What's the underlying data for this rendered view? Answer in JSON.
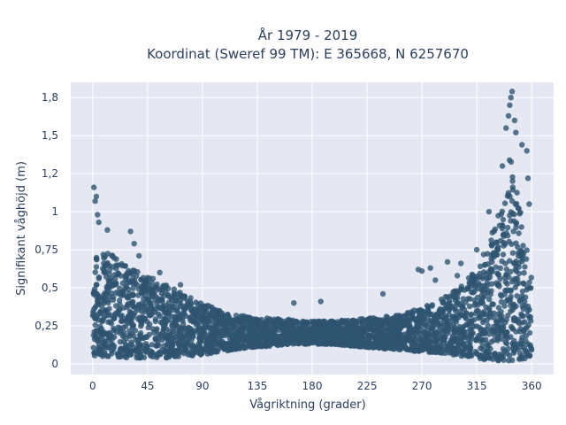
{
  "chart_data": {
    "type": "scatter",
    "title_line1": "År 1979 - 2019",
    "title_line2": "Koordinat (Sweref 99 TM): E 365668, N 6257670",
    "xlabel": "Vågriktning (grader)",
    "ylabel": "Signifikant våghöjd (m)",
    "xlim": [
      -18,
      378
    ],
    "ylim": [
      -0.07,
      1.85
    ],
    "x_ticks": [
      0,
      45,
      90,
      135,
      180,
      225,
      270,
      315,
      360
    ],
    "x_tick_labels": [
      "0",
      "45",
      "90",
      "135",
      "180",
      "225",
      "270",
      "315",
      "360"
    ],
    "y_ticks": [
      0,
      0.25,
      0.5,
      0.75,
      1,
      1.25,
      1.5,
      1.75
    ],
    "y_tick_labels": [
      "0",
      "0,25",
      "0,5",
      "0,75",
      "1",
      "1,2",
      "1,5",
      "1,8"
    ],
    "grid": true,
    "colors": {
      "marker": "#2e5470",
      "plot_background": "#e5e8f2",
      "grid": "#ffffff"
    },
    "envelope": {
      "x": [
        0,
        15,
        30,
        45,
        60,
        75,
        90,
        105,
        120,
        135,
        150,
        165,
        180,
        195,
        210,
        225,
        240,
        255,
        270,
        285,
        300,
        315,
        325,
        335,
        342,
        350,
        360
      ],
      "y_upper": [
        0.75,
        0.72,
        0.65,
        0.58,
        0.52,
        0.46,
        0.4,
        0.35,
        0.32,
        0.3,
        0.3,
        0.29,
        0.28,
        0.28,
        0.29,
        0.3,
        0.31,
        0.33,
        0.37,
        0.42,
        0.5,
        0.62,
        0.8,
        1.05,
        1.4,
        1.05,
        0.6
      ],
      "y_lower": [
        0.05,
        0.05,
        0.04,
        0.04,
        0.04,
        0.05,
        0.06,
        0.08,
        0.1,
        0.11,
        0.12,
        0.13,
        0.13,
        0.13,
        0.12,
        0.11,
        0.1,
        0.09,
        0.08,
        0.07,
        0.05,
        0.04,
        0.02,
        0.02,
        0.02,
        0.03,
        0.04
      ]
    },
    "outliers": [
      {
        "x": 1,
        "y": 1.16
      },
      {
        "x": 3,
        "y": 1.1
      },
      {
        "x": 2,
        "y": 1.07
      },
      {
        "x": 4,
        "y": 0.98
      },
      {
        "x": 5,
        "y": 0.93
      },
      {
        "x": 12,
        "y": 0.88
      },
      {
        "x": 31,
        "y": 0.87
      },
      {
        "x": 34,
        "y": 0.79
      },
      {
        "x": 38,
        "y": 0.71
      },
      {
        "x": 55,
        "y": 0.6
      },
      {
        "x": 72,
        "y": 0.52
      },
      {
        "x": 165,
        "y": 0.4
      },
      {
        "x": 187,
        "y": 0.41
      },
      {
        "x": 238,
        "y": 0.46
      },
      {
        "x": 267,
        "y": 0.62
      },
      {
        "x": 270,
        "y": 0.61
      },
      {
        "x": 277,
        "y": 0.63
      },
      {
        "x": 281,
        "y": 0.55
      },
      {
        "x": 291,
        "y": 0.67
      },
      {
        "x": 299,
        "y": 0.58
      },
      {
        "x": 302,
        "y": 0.66
      },
      {
        "x": 315,
        "y": 0.75
      },
      {
        "x": 325,
        "y": 1.0
      },
      {
        "x": 339,
        "y": 1.55
      },
      {
        "x": 341,
        "y": 1.63
      },
      {
        "x": 342,
        "y": 1.7
      },
      {
        "x": 343,
        "y": 1.75
      },
      {
        "x": 344,
        "y": 1.79
      },
      {
        "x": 346,
        "y": 1.6
      },
      {
        "x": 352,
        "y": 1.44
      },
      {
        "x": 356,
        "y": 1.4
      },
      {
        "x": 357,
        "y": 1.22
      },
      {
        "x": 358,
        "y": 1.05
      },
      {
        "x": 336,
        "y": 1.3
      },
      {
        "x": 347,
        "y": 1.52
      }
    ]
  }
}
